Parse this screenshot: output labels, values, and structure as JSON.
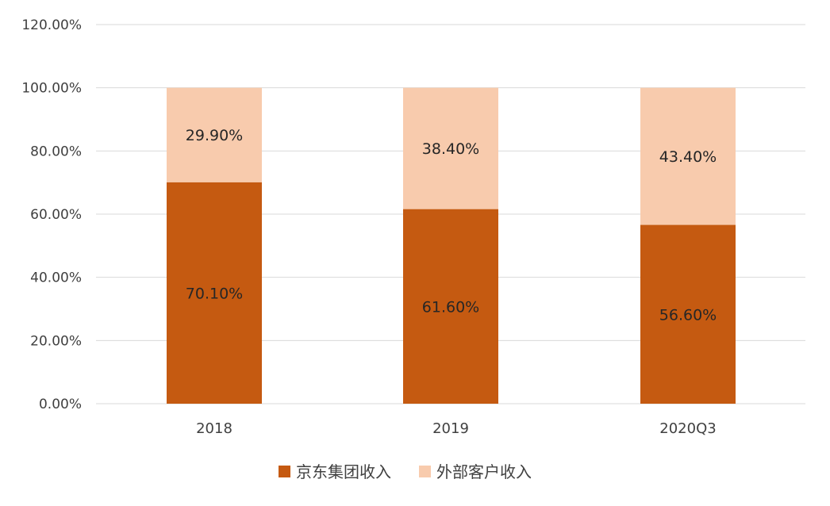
{
  "chart_data": {
    "type": "bar",
    "stacked": true,
    "categories": [
      "2018",
      "2019",
      "2020Q3"
    ],
    "series": [
      {
        "name": "京东集团收入",
        "values": [
          70.1,
          61.6,
          56.6
        ],
        "labels": [
          "70.10%",
          "61.60%",
          "56.60%"
        ],
        "color": "#c55a11"
      },
      {
        "name": "外部客户收入",
        "values": [
          29.9,
          38.4,
          43.4
        ],
        "labels": [
          "29.90%",
          "38.40%",
          "43.40%"
        ],
        "color": "#f8cbad"
      }
    ],
    "ylim": [
      0,
      120
    ],
    "yticks": [
      0,
      20,
      40,
      60,
      80,
      100,
      120
    ],
    "ytick_labels": [
      "0.00%",
      "20.00%",
      "40.00%",
      "60.00%",
      "80.00%",
      "100.00%",
      "120.00%"
    ],
    "grid": true,
    "legend_position": "bottom",
    "title": "",
    "xlabel": "",
    "ylabel": ""
  },
  "colors": {
    "gridline": "#d9d9d9",
    "tick_text": "#404040",
    "label_text": "#262626"
  }
}
